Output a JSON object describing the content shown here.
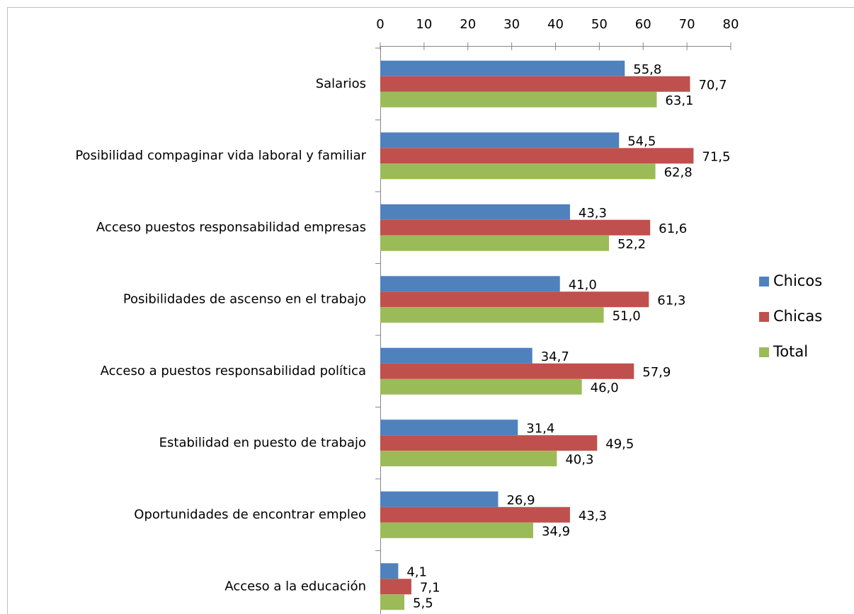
{
  "chart_data": {
    "type": "bar",
    "orientation": "horizontal",
    "categories": [
      "Salarios",
      "Posibilidad compaginar vida laboral y familiar",
      "Acceso puestos responsabilidad empresas",
      "Posibilidades de ascenso en el trabajo",
      "Acceso a puestos responsabilidad política",
      "Estabilidad en puesto de trabajo",
      "Oportunidades de encontrar empleo",
      "Acceso a la educación"
    ],
    "series": [
      {
        "name": "Chicos",
        "color": "#4f81bd",
        "values": [
          55.8,
          54.5,
          43.3,
          41.0,
          34.7,
          31.4,
          26.9,
          4.1
        ],
        "value_labels": [
          "55,8",
          "54,5",
          "43,3",
          "41,0",
          "34,7",
          "31,4",
          "26,9",
          "4,1"
        ]
      },
      {
        "name": "Chicas",
        "color": "#c0504d",
        "values": [
          70.7,
          71.5,
          61.6,
          61.3,
          57.9,
          49.5,
          43.3,
          7.1
        ],
        "value_labels": [
          "70,7",
          "71,5",
          "61,6",
          "61,3",
          "57,9",
          "49,5",
          "43,3",
          "7,1"
        ]
      },
      {
        "name": "Total",
        "color": "#9bbb59",
        "values": [
          63.1,
          62.8,
          52.2,
          51.0,
          46.0,
          40.3,
          34.9,
          5.5
        ],
        "value_labels": [
          "63,1",
          "62,8",
          "52,2",
          "51,0",
          "46,0",
          "40,3",
          "34,9",
          "5,5"
        ]
      }
    ],
    "xlim": [
      0,
      80
    ],
    "xticks": [
      0,
      10,
      20,
      30,
      40,
      50,
      60,
      70,
      80
    ],
    "legend": "right",
    "grid": false
  }
}
